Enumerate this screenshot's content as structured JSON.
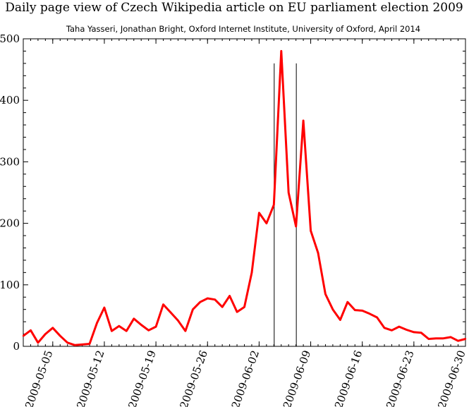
{
  "chart_data": {
    "type": "line",
    "title": "Daily page view of Czech Wikipedia article on EU parliament election 2009",
    "subtitle": "Taha Yasseri, Jonathan Bright, Oxford Internet Institute, University of Oxford, April 2014",
    "xlabel": "",
    "ylabel": "",
    "xlim": [
      "2009-05-01",
      "2009-06-30"
    ],
    "ylim": [
      0,
      500
    ],
    "y_ticks": [
      0,
      100,
      200,
      300,
      400,
      500
    ],
    "x_ticks": [
      "2009-05-05",
      "2009-05-12",
      "2009-05-19",
      "2009-05-26",
      "2009-06-02",
      "2009-06-09",
      "2009-06-16",
      "2009-06-23",
      "2009-06-30"
    ],
    "line_color": "#ff0000",
    "marker_lines": [
      "2009-06-04",
      "2009-06-07"
    ],
    "series": [
      {
        "x": [
          "2009-05-01",
          "2009-05-02",
          "2009-05-03",
          "2009-05-04",
          "2009-05-05",
          "2009-05-06",
          "2009-05-07",
          "2009-05-08",
          "2009-05-09",
          "2009-05-10",
          "2009-05-11",
          "2009-05-12",
          "2009-05-13",
          "2009-05-14",
          "2009-05-15",
          "2009-05-16",
          "2009-05-17",
          "2009-05-18",
          "2009-05-19",
          "2009-05-20",
          "2009-05-21",
          "2009-05-22",
          "2009-05-23",
          "2009-05-24",
          "2009-05-25",
          "2009-05-26",
          "2009-05-27",
          "2009-05-28",
          "2009-05-29",
          "2009-05-30",
          "2009-05-31",
          "2009-06-01",
          "2009-06-02",
          "2009-06-03",
          "2009-06-04",
          "2009-06-05",
          "2009-06-06",
          "2009-06-07",
          "2009-06-08",
          "2009-06-09",
          "2009-06-10",
          "2009-06-11",
          "2009-06-12",
          "2009-06-13",
          "2009-06-14",
          "2009-06-15",
          "2009-06-16",
          "2009-06-17",
          "2009-06-18",
          "2009-06-19",
          "2009-06-20",
          "2009-06-21",
          "2009-06-22",
          "2009-06-23",
          "2009-06-24",
          "2009-06-25",
          "2009-06-26",
          "2009-06-27",
          "2009-06-28",
          "2009-06-29",
          "2009-06-30"
        ],
        "values": [
          17,
          26,
          6,
          20,
          30,
          17,
          6,
          2,
          3,
          4,
          38,
          63,
          25,
          33,
          25,
          45,
          35,
          26,
          32,
          68,
          55,
          42,
          25,
          60,
          72,
          78,
          76,
          64,
          82,
          56,
          64,
          120,
          217,
          200,
          230,
          480,
          250,
          195,
          367,
          188,
          152,
          85,
          60,
          43,
          72,
          59,
          58,
          53,
          47,
          30,
          26,
          32,
          27,
          23,
          22,
          12,
          13,
          13,
          15,
          9,
          12
        ]
      }
    ]
  }
}
